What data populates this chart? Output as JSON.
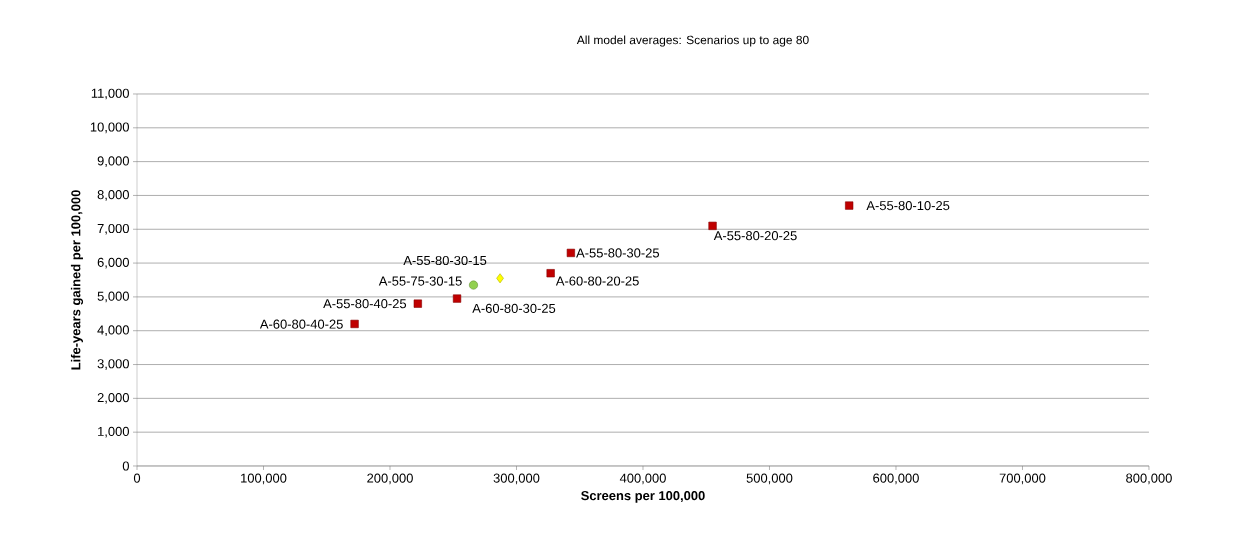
{
  "chart_data": {
    "type": "scatter",
    "title": "All model averages: Scenarios up to age 80",
    "xlabel": "Screens per 100,000",
    "ylabel": "Life-years gained per 100,000",
    "series": [
      {
        "marker": "square",
        "color": "#c00000",
        "x": [
          172000,
          222000,
          253000,
          327000,
          343000,
          455000,
          563000
        ],
        "values": [
          4200,
          4800,
          4950,
          5700,
          6300,
          7100,
          7700
        ]
      },
      {
        "marker": "circle",
        "color": "#92d050",
        "x": [
          266000
        ],
        "values": [
          5350
        ]
      },
      {
        "marker": "diamond",
        "color": "#ffff00",
        "x": [
          287000
        ],
        "values": [
          5550
        ]
      }
    ],
    "annotations": [
      {
        "text": "A-60-80-40-25",
        "x": 172000,
        "y": 4200
      },
      {
        "text": "A-55-80-40-25",
        "x": 222000,
        "y": 4800
      },
      {
        "text": "A-60-80-30-25",
        "x": 253000,
        "y": 4950
      },
      {
        "text": "A-55-75-30-15",
        "x": 266000,
        "y": 5350
      },
      {
        "text": "A-55-80-30-15",
        "x": 287000,
        "y": 5550
      },
      {
        "text": "A-60-80-20-25",
        "x": 327000,
        "y": 5700
      },
      {
        "text": "A-55-80-30-25",
        "x": 343000,
        "y": 6300
      },
      {
        "text": "A-55-80-20-25",
        "x": 455000,
        "y": 7100
      },
      {
        "text": "A-55-80-10-25",
        "x": 563000,
        "y": 7700
      }
    ],
    "xlim": [
      0,
      800000
    ],
    "ylim": [
      0,
      11000
    ],
    "xticks": [
      0,
      {
        "value": 100000,
        "label": "100,000"
      },
      {
        "value": 200000,
        "label": "200,000"
      },
      {
        "value": 300000,
        "label": "300,000"
      },
      {
        "value": 400000,
        "label": "400,000"
      },
      {
        "value": 500000,
        "label": "500,000"
      },
      {
        "value": 600000,
        "label": "600,000"
      },
      {
        "value": 700000,
        "label": "700,000"
      },
      {
        "value": 800000,
        "label": "800,000"
      }
    ],
    "yticks": [
      0,
      {
        "value": 1000,
        "label": "1,000"
      },
      {
        "value": 2000,
        "label": "2,000"
      },
      {
        "value": 3000,
        "label": "3,000"
      },
      {
        "value": 4000,
        "label": "4,000"
      },
      {
        "value": 5000,
        "label": "5,000"
      },
      {
        "value": 6000,
        "label": "6,000"
      },
      {
        "value": 7000,
        "label": "7,000"
      },
      {
        "value": 8000,
        "label": "8,000"
      },
      {
        "value": 9000,
        "label": "9,000"
      },
      {
        "value": 10000,
        "label": "10,000"
      },
      {
        "value": 11000,
        "label": "11,000"
      }
    ],
    "grid": "y"
  }
}
